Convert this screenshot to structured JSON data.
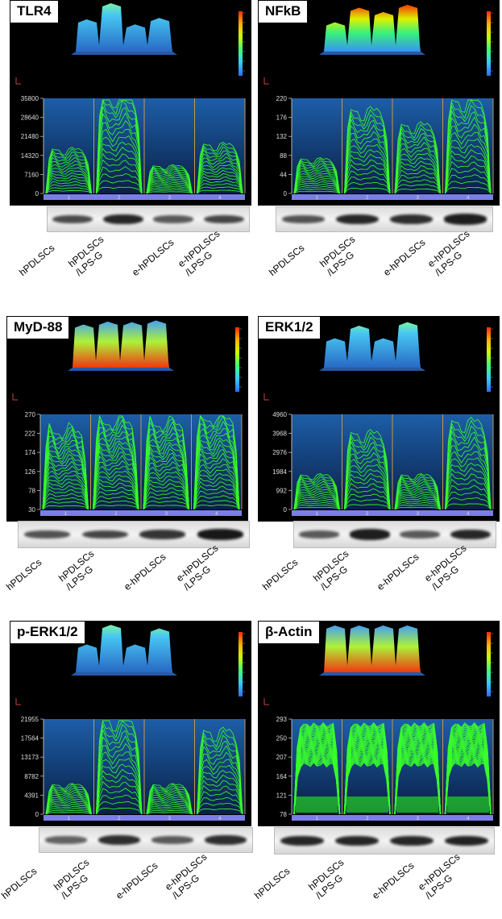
{
  "panels": [
    {
      "title": "TLR4",
      "ticks": [
        "35800",
        "28640",
        "21480",
        "14320",
        "7160",
        "0"
      ],
      "kind": "norm",
      "lanes": [
        0.45,
        1.0,
        0.28,
        0.5
      ],
      "bands": [
        0.55,
        0.8,
        0.45,
        0.6
      ],
      "blotIntensity": [
        0.6,
        0.85,
        0.5,
        0.65
      ],
      "topShape": "blue"
    },
    {
      "title": "NFkB",
      "ticks": [
        "220",
        "176",
        "132",
        "88",
        "44",
        "0"
      ],
      "kind": "norm",
      "lanes": [
        0.35,
        0.85,
        0.7,
        0.95
      ],
      "bands": [
        0.5,
        0.8,
        0.75,
        0.85
      ],
      "blotIntensity": [
        0.55,
        0.85,
        0.8,
        0.9
      ],
      "topShape": "rainbow"
    },
    {
      "title": "MyD-88",
      "ticks": [
        "270",
        "222",
        "174",
        "126",
        "78",
        "30"
      ],
      "kind": "dense",
      "lanes": [
        0.82,
        0.92,
        0.9,
        0.96
      ],
      "bands": [
        0.5,
        0.6,
        0.7,
        0.95
      ],
      "blotIntensity": [
        0.55,
        0.65,
        0.75,
        0.95
      ],
      "topShape": "flat"
    },
    {
      "title": "ERK1/2",
      "ticks": [
        "4960",
        "3968",
        "2976",
        "1984",
        "992",
        "0"
      ],
      "kind": "norm",
      "lanes": [
        0.35,
        0.78,
        0.35,
        0.9
      ],
      "bands": [
        0.5,
        0.9,
        0.5,
        0.85
      ],
      "blotIntensity": [
        0.5,
        0.9,
        0.5,
        0.85
      ],
      "topShape": "blue"
    },
    {
      "title": "p-ERK1/2",
      "ticks": [
        "21955",
        "17564",
        "13173",
        "8782",
        "4391",
        "0"
      ],
      "kind": "norm",
      "lanes": [
        0.3,
        0.97,
        0.3,
        0.85
      ],
      "bands": [
        0.45,
        0.8,
        0.5,
        0.8
      ],
      "blotIntensity": [
        0.45,
        0.8,
        0.5,
        0.8
      ],
      "topShape": "blue"
    },
    {
      "title": "β-Actin",
      "ticks": [
        "293",
        "250",
        "207",
        "164",
        "121",
        "78"
      ],
      "kind": "actin",
      "lanes": [
        0.95,
        0.95,
        0.95,
        0.95
      ],
      "bands": [
        0.85,
        0.85,
        0.85,
        0.88
      ],
      "blotIntensity": [
        0.85,
        0.85,
        0.85,
        0.88
      ],
      "topShape": "flat"
    }
  ],
  "laneNumbers": [
    "1",
    "2",
    "3",
    "4"
  ],
  "labels": [
    "hPDLSCs",
    "hPDLSCs\n/LPS-G",
    "e-hPDLSCs",
    "e-hPDLSCs\n/LPS-G"
  ]
}
